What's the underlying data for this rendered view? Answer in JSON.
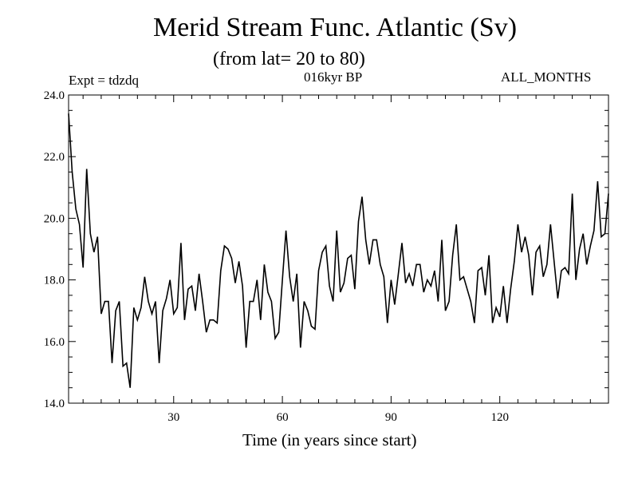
{
  "chart_data": {
    "type": "line",
    "title": "Merid Stream Func. Atlantic (Sv)",
    "subtitle": "(from lat= 20 to 80)",
    "annotations": {
      "experiment": "Expt = tdzdq",
      "period": "016kyr BP",
      "months": "ALL_MONTHS"
    },
    "xlabel": "Time (in years since start)",
    "ylabel": "",
    "xlim": [
      1,
      150
    ],
    "ylim": [
      14.0,
      24.0
    ],
    "x_ticks": [
      30,
      60,
      90,
      120
    ],
    "x_tick_labels": [
      "30",
      "60",
      "90",
      "120"
    ],
    "y_ticks": [
      14,
      16,
      18,
      20,
      22,
      24
    ],
    "y_tick_labels": [
      "14.0",
      "16.0",
      "18.0",
      "20.0",
      "22.0",
      "24.0"
    ],
    "grid": false,
    "series": [
      {
        "name": "Merid Stream Func.",
        "color": "#000000",
        "x_start": 1,
        "x_step": 1,
        "values": [
          23.4,
          21.5,
          20.3,
          19.8,
          18.4,
          21.6,
          19.5,
          18.9,
          19.4,
          16.9,
          17.3,
          17.3,
          15.3,
          17.0,
          17.3,
          15.2,
          15.3,
          14.5,
          17.1,
          16.7,
          17.1,
          18.1,
          17.3,
          16.9,
          17.3,
          15.3,
          17.0,
          17.4,
          18.0,
          16.9,
          17.1,
          19.2,
          16.7,
          17.7,
          17.8,
          17.0,
          18.2,
          17.3,
          16.3,
          16.7,
          16.7,
          16.6,
          18.3,
          19.1,
          19.0,
          18.7,
          17.9,
          18.6,
          17.8,
          15.8,
          17.3,
          17.3,
          18.0,
          16.7,
          18.5,
          17.6,
          17.3,
          16.1,
          16.3,
          18.0,
          19.6,
          18.1,
          17.3,
          18.2,
          15.8,
          17.3,
          17.0,
          16.5,
          16.4,
          18.3,
          18.9,
          19.1,
          17.8,
          17.3,
          19.6,
          17.6,
          17.9,
          18.7,
          18.8,
          17.7,
          19.9,
          20.7,
          19.3,
          18.5,
          19.3,
          19.3,
          18.5,
          18.1,
          16.6,
          18.0,
          17.2,
          18.2,
          19.2,
          17.9,
          18.2,
          17.8,
          18.5,
          18.5,
          17.6,
          18.0,
          17.8,
          18.3,
          17.3,
          19.3,
          17.0,
          17.3,
          18.8,
          19.8,
          18.0,
          18.1,
          17.7,
          17.3,
          16.6,
          18.3,
          18.4,
          17.5,
          18.8,
          16.6,
          17.1,
          16.8,
          17.8,
          16.6,
          17.7,
          18.6,
          19.8,
          18.9,
          19.4,
          18.8,
          17.5,
          18.9,
          19.1,
          18.1,
          18.5,
          19.8,
          18.6,
          17.4,
          18.3,
          18.4,
          18.2,
          20.8,
          18.0,
          19.0,
          19.5,
          18.5,
          19.1,
          19.6,
          21.2,
          19.4,
          19.5,
          20.8
        ]
      }
    ]
  }
}
